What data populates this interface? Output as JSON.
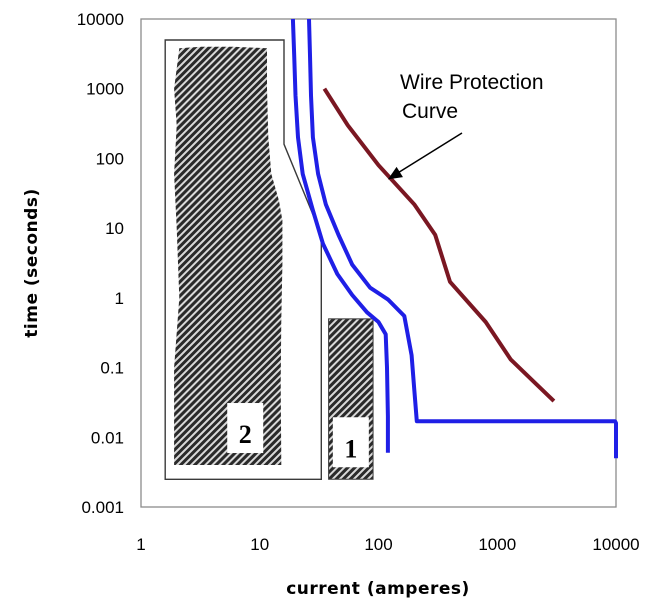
{
  "chart_data": {
    "type": "line",
    "xlabel": "current (amperes)",
    "ylabel": "time (seconds)",
    "x_scale": "log",
    "y_scale": "log",
    "xlim": [
      1,
      10000
    ],
    "ylim": [
      0.001,
      10000
    ],
    "x_ticks": [
      "1",
      "10",
      "100",
      "1000",
      "10000"
    ],
    "y_ticks": [
      "10000",
      "1000",
      "100",
      "10",
      "1",
      "0.1",
      "0.01",
      "0.001"
    ],
    "grid": false,
    "colors": {
      "band": "#1f1fe6",
      "wire": "#7a1722",
      "hatch": "#2a2a2a"
    },
    "series": [
      {
        "values": [
          [
            19,
            10000
          ],
          [
            19.5,
            3000
          ],
          [
            20,
            800
          ],
          [
            21,
            200
          ],
          [
            23,
            60
          ],
          [
            28,
            18
          ],
          [
            34,
            6
          ],
          [
            45,
            2.2
          ],
          [
            60,
            1.1
          ],
          [
            80,
            0.62
          ],
          [
            100,
            0.45
          ],
          [
            115,
            0.3
          ],
          [
            118,
            0.1
          ],
          [
            120,
            0.02
          ],
          [
            120,
            0.006
          ]
        ]
      },
      {
        "values": [
          [
            26,
            10000
          ],
          [
            26.5,
            3000
          ],
          [
            27,
            800
          ],
          [
            28,
            200
          ],
          [
            31,
            60
          ],
          [
            36,
            22
          ],
          [
            46,
            8
          ],
          [
            60,
            3
          ],
          [
            85,
            1.4
          ],
          [
            120,
            0.95
          ],
          [
            165,
            0.55
          ],
          [
            190,
            0.15
          ],
          [
            200,
            0.05
          ],
          [
            210,
            0.017
          ],
          [
            500,
            0.017
          ],
          [
            2000,
            0.017
          ],
          [
            9800,
            0.017
          ],
          [
            10000,
            0.016
          ],
          [
            10000,
            0.005
          ]
        ]
      },
      {
        "values": [
          [
            35,
            1000
          ],
          [
            55,
            300
          ],
          [
            100,
            80
          ],
          [
            200,
            22
          ],
          [
            300,
            8
          ],
          [
            400,
            1.7
          ],
          [
            800,
            0.45
          ],
          [
            1300,
            0.13
          ],
          [
            3000,
            0.033
          ]
        ]
      }
    ],
    "regions": [
      {
        "label": "2",
        "outline": [
          [
            1.6,
            5000
          ],
          [
            16,
            5000
          ],
          [
            16,
            160
          ],
          [
            33,
            8
          ],
          [
            33,
            0.0025
          ],
          [
            1.6,
            0.0025
          ]
        ],
        "hatched_shape": [
          [
            2.1,
            3800
          ],
          [
            3.2,
            4000
          ],
          [
            6,
            4000
          ],
          [
            11.5,
            3800
          ],
          [
            11.5,
            1000
          ],
          [
            11.8,
            200
          ],
          [
            12.5,
            60
          ],
          [
            14.5,
            25
          ],
          [
            15.5,
            13
          ],
          [
            15.5,
            3
          ],
          [
            15.2,
            0.5
          ],
          [
            15,
            0.06
          ],
          [
            15.2,
            0.004
          ],
          [
            1.9,
            0.004
          ],
          [
            1.9,
            0.1
          ],
          [
            2.1,
            1
          ],
          [
            2,
            10
          ],
          [
            1.9,
            60
          ],
          [
            2,
            300
          ],
          [
            1.9,
            1000
          ]
        ]
      },
      {
        "label": "1",
        "bounds": [
          [
            38,
            0.5
          ],
          [
            90,
            0.0025
          ]
        ]
      }
    ],
    "annotations": [
      {
        "lines": [
          "Wire Protection",
          "Curve"
        ],
        "points_to": [
          120,
          50
        ]
      }
    ]
  }
}
